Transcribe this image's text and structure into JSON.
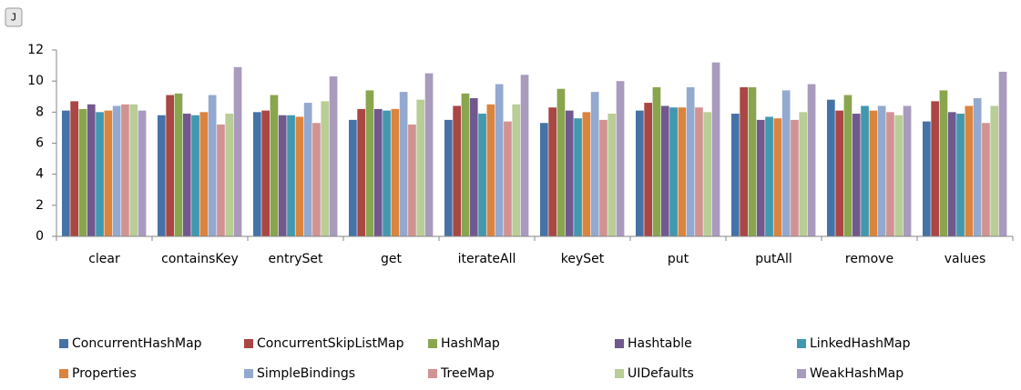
{
  "toolbar": {
    "button": "J"
  },
  "chart_data": {
    "type": "bar",
    "categories": [
      "clear",
      "containsKey",
      "entrySet",
      "get",
      "iterateAll",
      "keySet",
      "put",
      "putAll",
      "remove",
      "values"
    ],
    "series": [
      {
        "name": "ConcurrentHashMap",
        "color": "#4572a7",
        "values": [
          8.1,
          7.8,
          8.0,
          7.5,
          7.5,
          7.3,
          8.1,
          7.9,
          8.8,
          7.4
        ]
      },
      {
        "name": "ConcurrentSkipListMap",
        "color": "#aa4643",
        "values": [
          8.7,
          9.1,
          8.1,
          8.2,
          8.4,
          8.3,
          8.6,
          9.6,
          8.1,
          8.7
        ]
      },
      {
        "name": "HashMap",
        "color": "#89a54e",
        "values": [
          8.2,
          9.2,
          9.1,
          9.4,
          9.2,
          9.5,
          9.6,
          9.6,
          9.1,
          9.4
        ]
      },
      {
        "name": "Hashtable",
        "color": "#71588f",
        "values": [
          8.5,
          7.9,
          7.8,
          8.2,
          8.9,
          8.1,
          8.4,
          7.5,
          7.9,
          8.0
        ]
      },
      {
        "name": "LinkedHashMap",
        "color": "#4198af",
        "values": [
          8.0,
          7.8,
          7.8,
          8.1,
          7.9,
          7.6,
          8.3,
          7.7,
          8.4,
          7.9
        ]
      },
      {
        "name": "Properties",
        "color": "#db843d",
        "values": [
          8.1,
          8.0,
          7.7,
          8.2,
          8.5,
          8.0,
          8.3,
          7.6,
          8.1,
          8.4
        ]
      },
      {
        "name": "SimpleBindings",
        "color": "#93a9cf",
        "values": [
          8.4,
          9.1,
          8.6,
          9.3,
          9.8,
          9.3,
          9.6,
          9.4,
          8.4,
          8.9
        ]
      },
      {
        "name": "TreeMap",
        "color": "#d19392",
        "values": [
          8.5,
          7.2,
          7.3,
          7.2,
          7.4,
          7.5,
          8.3,
          7.5,
          8.0,
          7.3
        ]
      },
      {
        "name": "UIDefaults",
        "color": "#b9cd96",
        "values": [
          8.5,
          7.9,
          8.7,
          8.8,
          8.5,
          7.9,
          8.0,
          8.0,
          7.8,
          8.4
        ]
      },
      {
        "name": "WeakHashMap",
        "color": "#a99bbd",
        "values": [
          8.1,
          10.9,
          10.3,
          10.5,
          10.4,
          10.0,
          11.2,
          9.8,
          8.4,
          10.6
        ]
      }
    ],
    "ylim": [
      0,
      12
    ],
    "yticks": [
      0,
      2,
      4,
      6,
      8,
      10,
      12
    ],
    "grid": false,
    "legend": "bottom"
  }
}
